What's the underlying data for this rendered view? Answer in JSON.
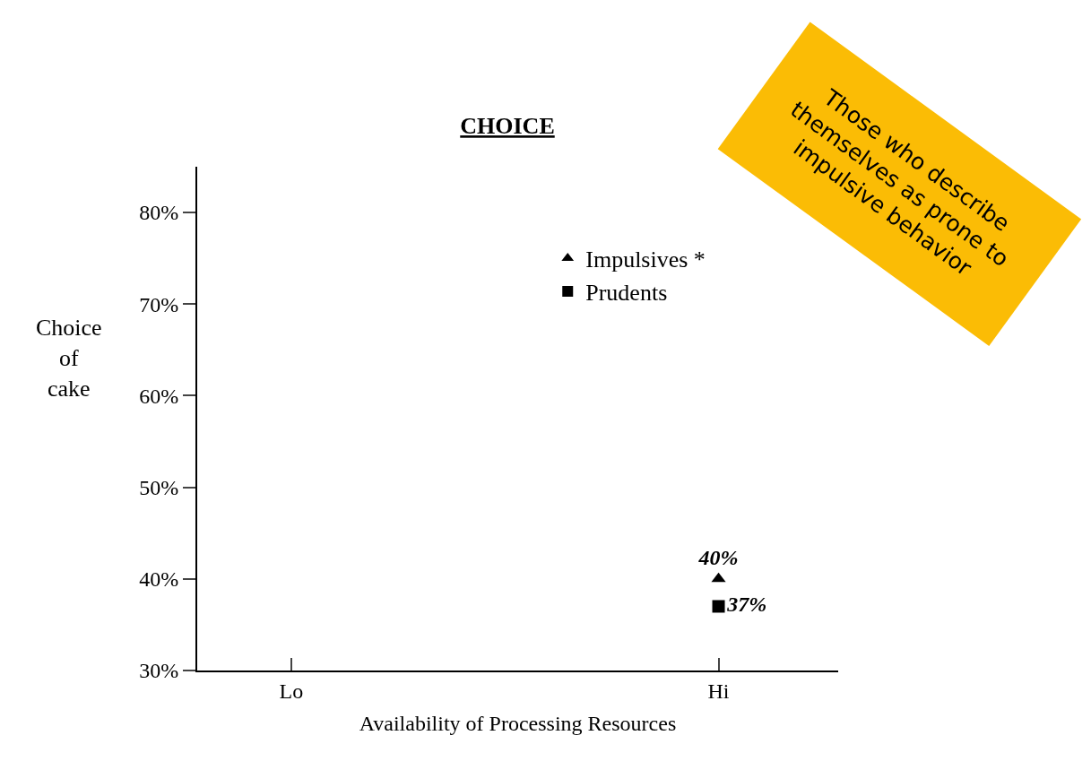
{
  "chart_data": {
    "type": "scatter",
    "title": "CHOICE",
    "xlabel": "Availability of Processing Resources",
    "ylabel": "Choice of cake",
    "categories": [
      "Lo",
      "Hi"
    ],
    "series": [
      {
        "name": "Impulsives *",
        "color": "#000000",
        "marker": "triangle",
        "values": [
          null,
          40
        ],
        "value_labels": [
          null,
          "40%"
        ]
      },
      {
        "name": "Prudents",
        "color": "#000000",
        "marker": "square",
        "values": [
          null,
          37
        ],
        "value_labels": [
          null,
          "37%"
        ]
      }
    ],
    "ylim": [
      30,
      85
    ],
    "yticks": [
      {
        "value": 30,
        "label": "30%"
      },
      {
        "value": 40,
        "label": "40%"
      },
      {
        "value": 50,
        "label": "50%"
      },
      {
        "value": 60,
        "label": "60%"
      },
      {
        "value": 70,
        "label": "70%"
      },
      {
        "value": 80,
        "label": "80%"
      }
    ],
    "legend": "top right",
    "annotations": [
      "Those who describe themselves as prone to impulsive behavior"
    ]
  }
}
